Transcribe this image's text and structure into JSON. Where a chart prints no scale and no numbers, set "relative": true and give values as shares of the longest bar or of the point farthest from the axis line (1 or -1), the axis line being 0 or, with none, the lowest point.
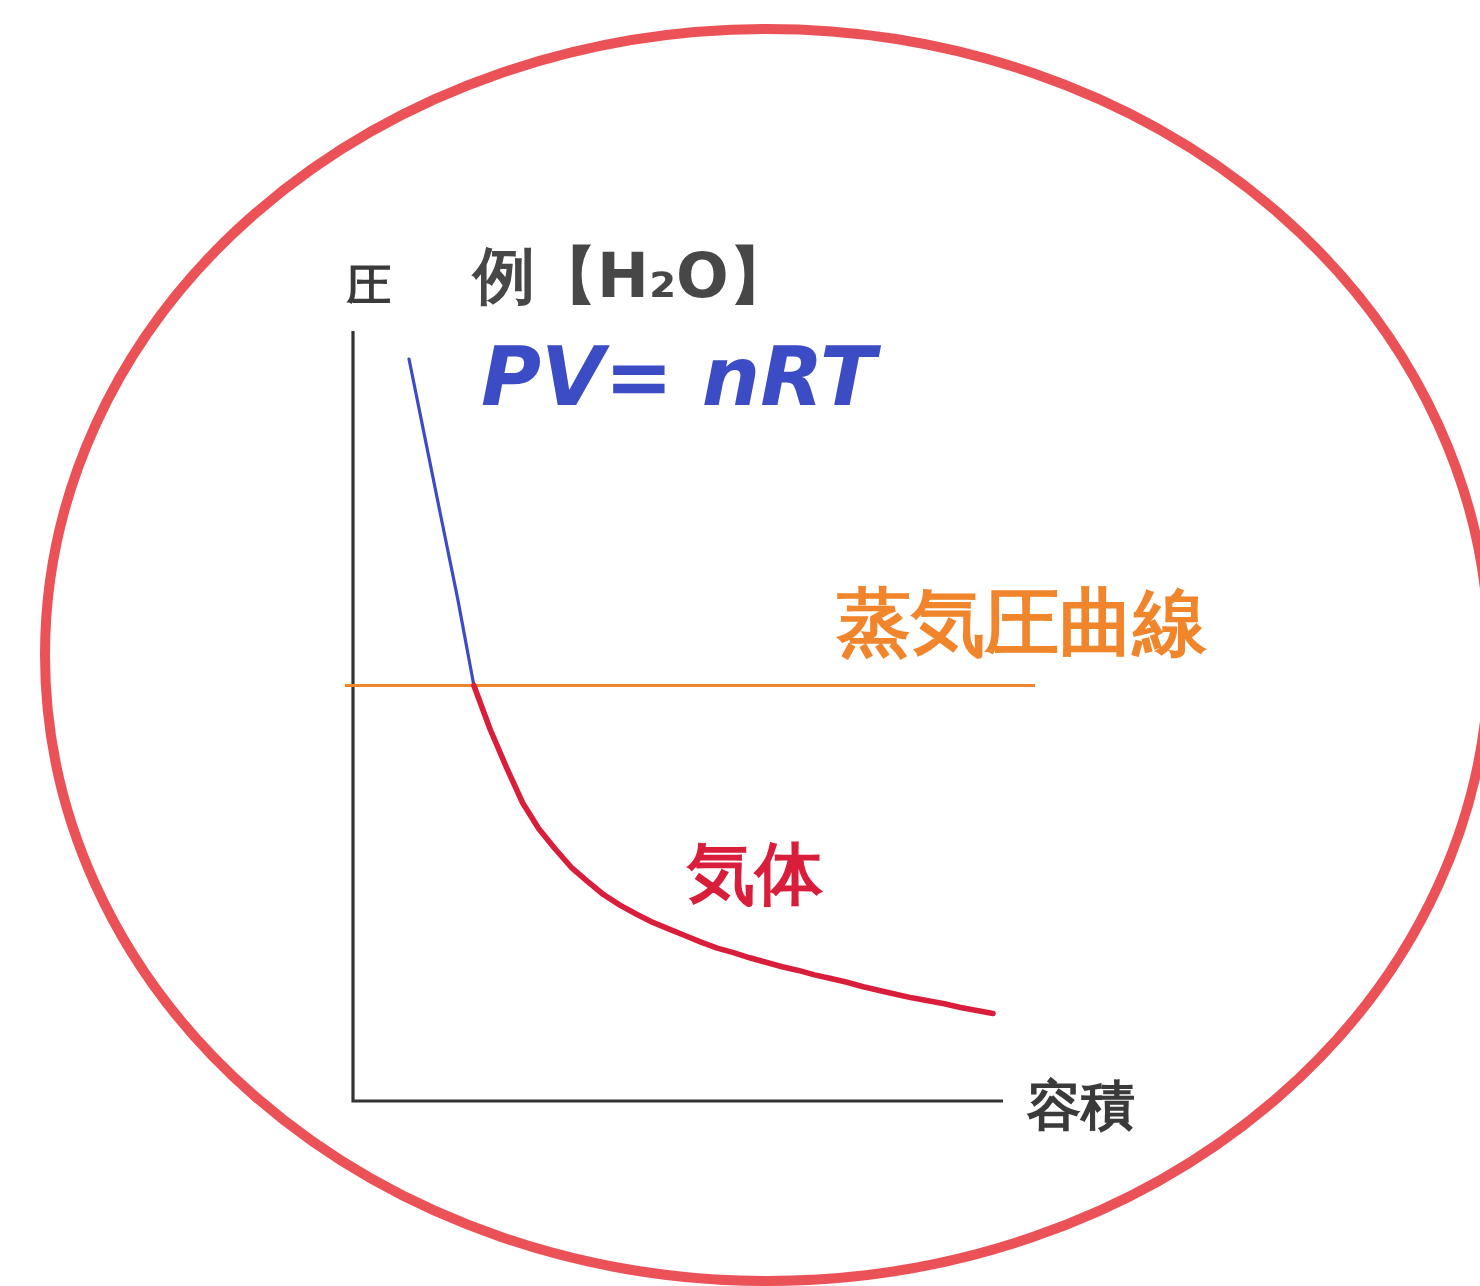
{
  "chart_data": {
    "type": "line",
    "title": "例【H₂O】",
    "xlabel": "容積",
    "ylabel": "圧",
    "relative": true,
    "categories": [
      null,
      null,
      null,
      null,
      null,
      null,
      null,
      null,
      null,
      null,
      null,
      null,
      null,
      null,
      null,
      null,
      null,
      null,
      null,
      null,
      null,
      null,
      null,
      null,
      null,
      null,
      null,
      null,
      null,
      null,
      null,
      null,
      null,
      null,
      null,
      null,
      null
    ],
    "series": [
      {
        "name": "PV= nRT",
        "color": "#3c4cc4",
        "values": [
          1.0,
          0.892,
          0.784,
          0.677,
          0.56,
          null,
          null,
          null,
          null,
          null,
          null,
          null,
          null,
          null,
          null,
          null,
          null,
          null,
          null,
          null,
          null,
          null,
          null,
          null,
          null,
          null,
          null,
          null,
          null,
          null,
          null,
          null,
          null,
          null,
          null,
          null,
          null
        ]
      },
      {
        "name": "気体",
        "color": "#d81e3a",
        "values": [
          null,
          null,
          null,
          null,
          0.56,
          0.501,
          0.45,
          0.402,
          0.367,
          0.34,
          0.315,
          0.296,
          0.278,
          0.264,
          0.252,
          0.241,
          0.232,
          0.223,
          0.214,
          0.206,
          0.2,
          0.193,
          0.187,
          0.181,
          0.176,
          0.17,
          0.165,
          0.16,
          0.154,
          0.149,
          0.144,
          0.139,
          0.135,
          0.131,
          0.126,
          0.122,
          0.118
        ]
      }
    ],
    "ref_lines": [
      {
        "axis": "y",
        "value": 0.56,
        "label": "蒸気圧曲線",
        "color": "#f0852c"
      }
    ]
  }
}
